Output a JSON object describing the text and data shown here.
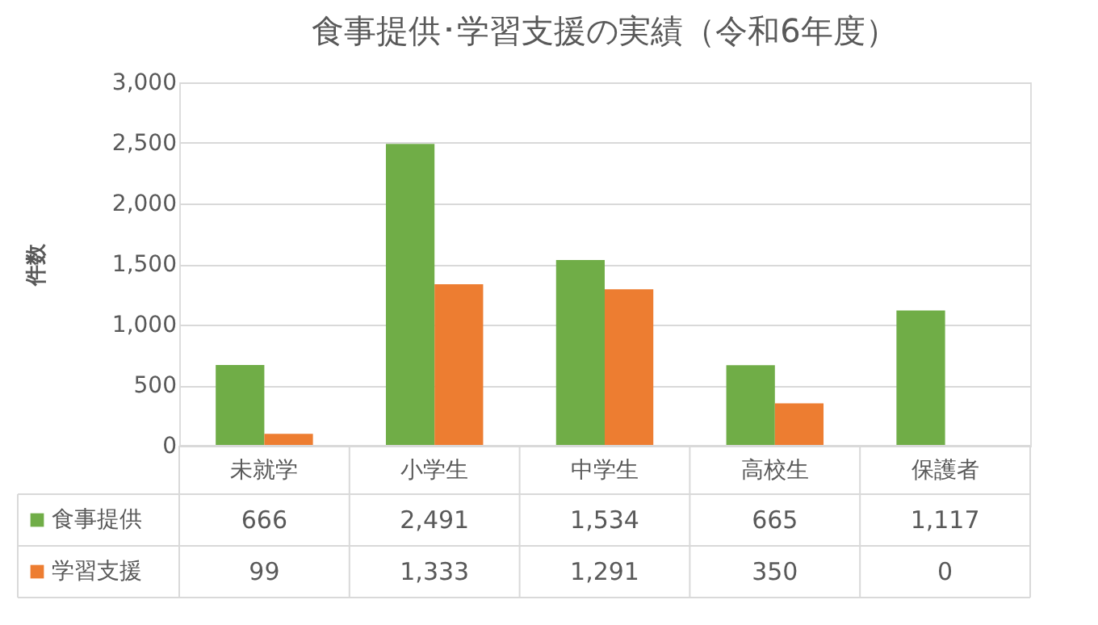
{
  "chart_data": {
    "type": "bar",
    "title": "食事提供･学習支援の実績（令和6年度）",
    "ylabel": "件数",
    "categories": [
      "未就学",
      "小学生",
      "中学生",
      "高校生",
      "保護者"
    ],
    "series": [
      {
        "name": "食事提供",
        "color": "#70ad47",
        "values": [
          666,
          2491,
          1534,
          665,
          1117
        ],
        "value_labels": [
          "666",
          "2,491",
          "1,534",
          "665",
          "1,117"
        ]
      },
      {
        "name": "学習支援",
        "color": "#ed7d31",
        "values": [
          99,
          1333,
          1291,
          350,
          0
        ],
        "value_labels": [
          "99",
          "1,333",
          "1,291",
          "350",
          "0"
        ]
      }
    ],
    "ylim": [
      0,
      3000
    ],
    "yticks": [
      0,
      500,
      {
        "value": 1000,
        "label": "1,000"
      },
      {
        "value": 1500,
        "label": "1,500"
      },
      {
        "value": 2000,
        "label": "2,000"
      },
      {
        "value": 2500,
        "label": "2,500"
      },
      {
        "value": 3000,
        "label": "3,000"
      }
    ],
    "grid": "y",
    "legend": "bottom"
  }
}
